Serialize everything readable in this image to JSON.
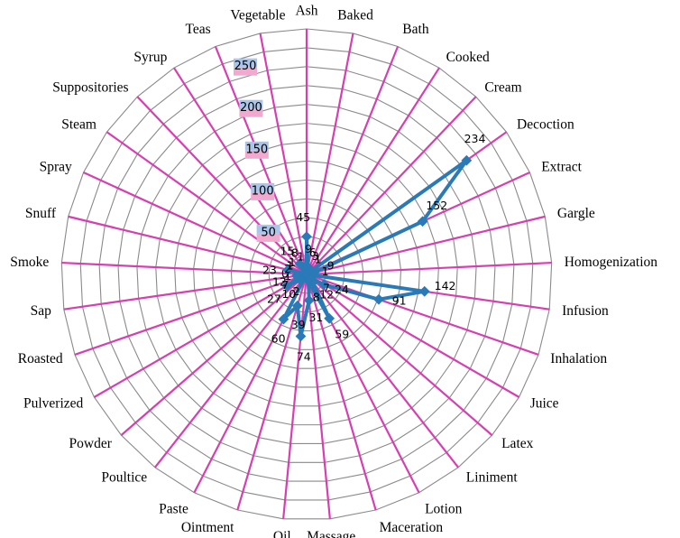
{
  "chart_data": {
    "type": "radar",
    "categories": [
      "Ash",
      "Baked",
      "Bath",
      "Cooked",
      "Cream",
      "Decoction",
      "Extract",
      "Gargle",
      "Homogenization",
      "Infusion",
      "Inhalation",
      "Juice",
      "Latex",
      "Liniment",
      "Lotion",
      "Maceration",
      "Massage",
      "Oil",
      "Ointment",
      "Paste",
      "Poultice",
      "Powder",
      "Pulverized",
      "Roasted",
      "Sap",
      "Smoke",
      "Snuff",
      "Spray",
      "Steam",
      "Suppositories",
      "Syrup",
      "Teas",
      "Vegetable"
    ],
    "values": [
      45,
      9,
      6,
      3,
      1,
      234,
      152,
      9,
      1,
      142,
      91,
      24,
      7,
      12,
      59,
      8,
      31,
      74,
      39,
      60,
      2,
      10,
      27,
      7,
      12,
      1,
      23,
      2,
      1,
      1,
      15,
      8,
      1
    ],
    "r_ticks": [
      "0",
      "50",
      "100",
      "150",
      "200",
      "250"
    ],
    "rlim": [
      0,
      250
    ],
    "grid": true,
    "colors": {
      "series": "#2a7ab8",
      "spokes": "#d63fb0",
      "rings": "#8a8a8a",
      "tick_bg": "#a9c6ea",
      "tick_bg_alt": "#f2a9d0"
    }
  }
}
